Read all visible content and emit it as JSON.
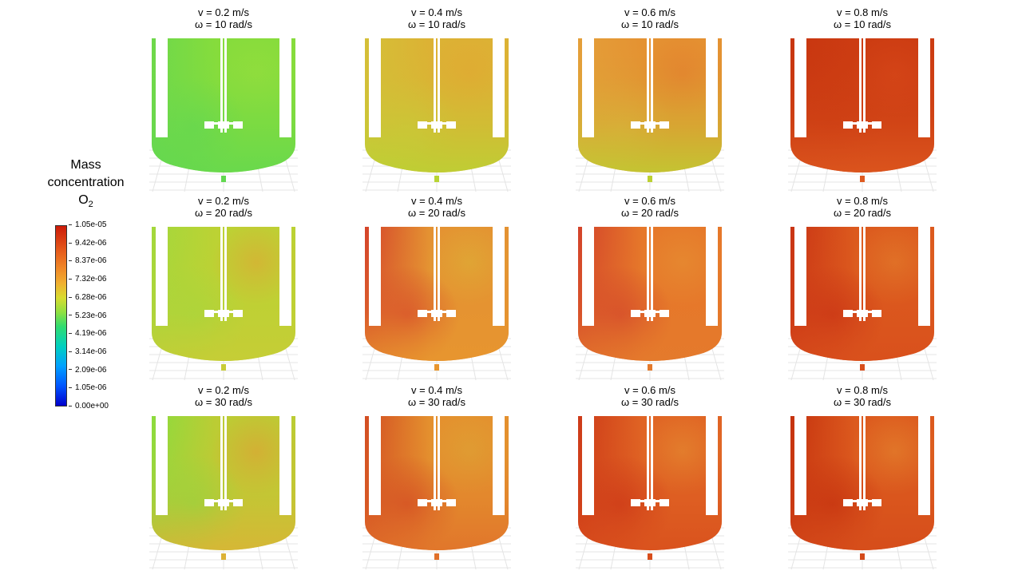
{
  "legend": {
    "title_line1": "Mass",
    "title_line2": "concentration",
    "title_species": "O",
    "title_subscript": "2",
    "ticks": [
      "1.05e-05",
      "9.42e-06",
      "8.37e-06",
      "7.32e-06",
      "6.28e-06",
      "5.23e-06",
      "4.19e-06",
      "3.14e-06",
      "2.09e-06",
      "1.05e-06",
      "0.00e+00"
    ]
  },
  "panels": [
    {
      "v_label": "v = 0.2 m/s",
      "w_label": "ω = 10 rad/s",
      "base": "#86dc3c",
      "left": "#6cd84c",
      "bottom": "#62d850",
      "accent": "#9ade3c"
    },
    {
      "v_label": "v = 0.4 m/s",
      "w_label": "ω = 10 rad/s",
      "base": "#dcb234",
      "left": "#d4c038",
      "bottom": "#b8d434",
      "accent": "#e4a432"
    },
    {
      "v_label": "v = 0.6 m/s",
      "w_label": "ω = 10 rad/s",
      "base": "#e49232",
      "left": "#e4a03a",
      "bottom": "#bcd032",
      "accent": "#e4782c"
    },
    {
      "v_label": "v = 0.8 m/s",
      "w_label": "ω = 10 rad/s",
      "base": "#cc3c12",
      "left": "#c83610",
      "bottom": "#de5a20",
      "accent": "#d8481a"
    },
    {
      "v_label": "v = 0.2 m/s",
      "w_label": "ω = 20 rad/s",
      "base": "#bcd234",
      "left": "#a2d83c",
      "bottom": "#c8cc36",
      "accent": "#e4a034"
    },
    {
      "v_label": "v = 0.4 m/s",
      "w_label": "ω = 20 rad/s",
      "base": "#e49232",
      "left": "#d4402a",
      "bottom": "#e8962e",
      "accent": "#dcb436"
    },
    {
      "v_label": "v = 0.6 m/s",
      "w_label": "ω = 20 rad/s",
      "base": "#e6782a",
      "left": "#d2402a",
      "bottom": "#e47a2c",
      "accent": "#e69434"
    },
    {
      "v_label": "v = 0.8 m/s",
      "w_label": "ω = 20 rad/s",
      "base": "#dc5a1e",
      "left": "#c83214",
      "bottom": "#d84e1c",
      "accent": "#e4842e"
    },
    {
      "v_label": "v = 0.2 m/s",
      "w_label": "ω = 30 rad/s",
      "base": "#bccc34",
      "left": "#8adc3e",
      "bottom": "#dcb236",
      "accent": "#e49a34"
    },
    {
      "v_label": "v = 0.4 m/s",
      "w_label": "ω = 30 rad/s",
      "base": "#e4902e",
      "left": "#d24a22",
      "bottom": "#e0702a",
      "accent": "#dca836"
    },
    {
      "v_label": "v = 0.6 m/s",
      "w_label": "ω = 30 rad/s",
      "base": "#e06424",
      "left": "#cc3818",
      "bottom": "#d84e1c",
      "accent": "#e69434"
    },
    {
      "v_label": "v = 0.8 m/s",
      "w_label": "ω = 30 rad/s",
      "base": "#dc5a1e",
      "left": "#c4300e",
      "bottom": "#d44a1a",
      "accent": "#e68e32"
    }
  ]
}
